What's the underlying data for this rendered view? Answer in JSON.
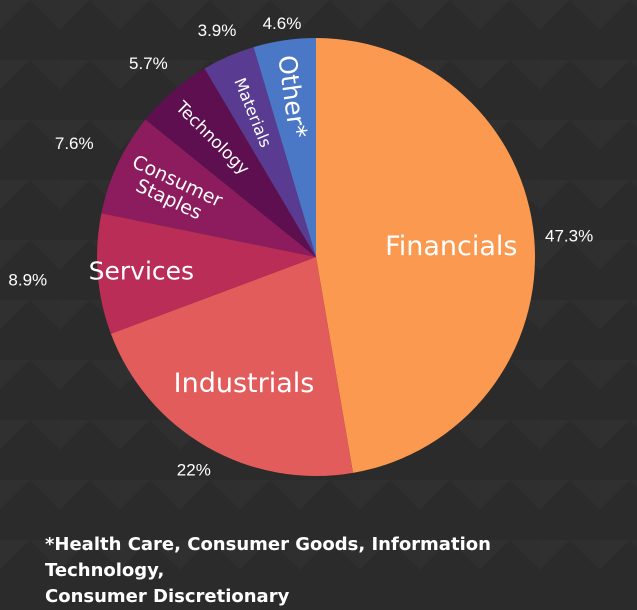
{
  "chart_data": {
    "type": "pie",
    "title": "",
    "slices": [
      {
        "label": "Financials",
        "value": 47.3,
        "value_label": "47.3%",
        "color": "#fb9950"
      },
      {
        "label": "Industrials",
        "value": 22,
        "value_label": "22%",
        "color": "#e25c5c"
      },
      {
        "label": "Services",
        "value": 8.9,
        "value_label": "8.9%",
        "color": "#b92d57"
      },
      {
        "label": "Consumer Staples",
        "label_lines": [
          "Consumer",
          "Staples"
        ],
        "value": 7.6,
        "value_label": "7.6%",
        "color": "#8d1c5e"
      },
      {
        "label": "Technology",
        "value": 5.7,
        "value_label": "5.7%",
        "color": "#5e0f4f"
      },
      {
        "label": "Materials",
        "value": 3.9,
        "value_label": "3.9%",
        "color": "#5a3b92"
      },
      {
        "label": "Other*",
        "value": 4.6,
        "value_label": "4.6%",
        "color": "#4a77c6"
      }
    ],
    "legend": "none"
  },
  "footnote": {
    "line1": "*Health Care, Consumer Goods, Information Technology,",
    "line2": "Consumer Discretionary"
  }
}
